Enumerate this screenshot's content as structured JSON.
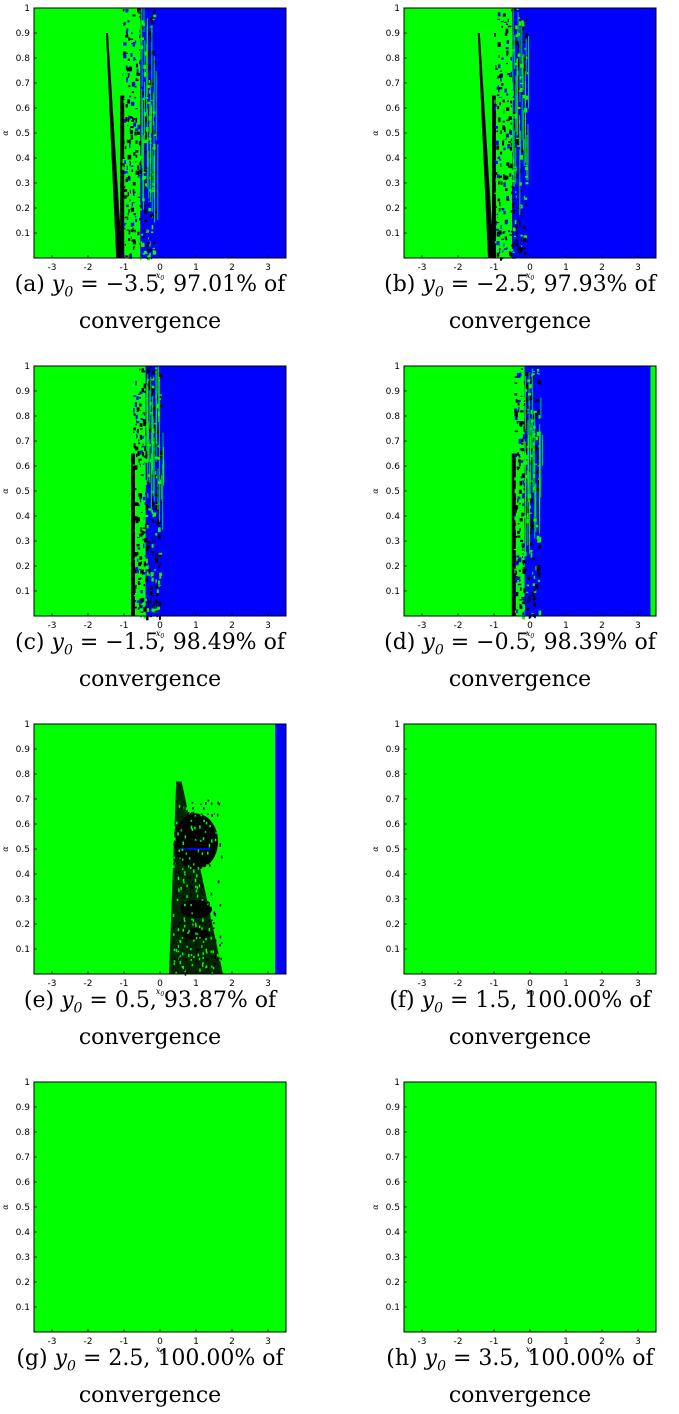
{
  "figure": {
    "x_axis_label": "x0",
    "y_axis_label": "α",
    "x_ticks": [
      -3,
      -2,
      -1,
      0,
      1,
      2,
      3
    ],
    "y_ticks": [
      0.1,
      0.2,
      0.3,
      0.4,
      0.5,
      0.6,
      0.7,
      0.8,
      0.9,
      1
    ],
    "x_range": [
      -3.5,
      3.5
    ],
    "y_range": [
      0,
      1
    ],
    "colors": {
      "converge_green": "#00ff00",
      "converge_blue": "#0000ff",
      "divergent_black": "#000000"
    },
    "panels": [
      {
        "letter": "(a)",
        "y0_label": "y0",
        "y0": "= −3.5,",
        "percent": "97.01% of",
        "word": "convergence",
        "green_until": -1.05,
        "blue_from": -0.55,
        "blue_to": 3.5,
        "right_green": false,
        "chaos_blob": false,
        "solid": false
      },
      {
        "letter": "(b)",
        "y0_label": "y0",
        "y0": "= −2.5,",
        "percent": "97.93% of",
        "word": "convergence",
        "green_until": -1.0,
        "blue_from": -0.5,
        "blue_to": 3.5,
        "right_green": false,
        "chaos_blob": false,
        "solid": false
      },
      {
        "letter": "(c)",
        "y0_label": "y0",
        "y0": "= −1.5,",
        "percent": "98.49% of",
        "word": "convergence",
        "green_until": -0.75,
        "blue_from": -0.4,
        "blue_to": 3.5,
        "right_green": false,
        "chaos_blob": false,
        "solid": false
      },
      {
        "letter": "(d)",
        "y0_label": "y0",
        "y0": "= −0.5,",
        "percent": "98.39% of",
        "word": "convergence",
        "green_until": -0.45,
        "blue_from": -0.15,
        "blue_to": 3.35,
        "right_green": true,
        "chaos_blob": false,
        "solid": false
      },
      {
        "letter": "(e)",
        "y0_label": "y0",
        "y0": "= 0.5,",
        "percent": "93.87% of",
        "word": "convergence",
        "green_until": 3.2,
        "blue_from": 3.2,
        "blue_to": 3.5,
        "right_green": false,
        "chaos_blob": true,
        "solid": false
      },
      {
        "letter": "(f)",
        "y0_label": "y0",
        "y0": "= 1.5,",
        "percent": "100.00% of",
        "word": "convergence",
        "solid": true
      },
      {
        "letter": "(g)",
        "y0_label": "y0",
        "y0": "= 2.5,",
        "percent": "100.00% of",
        "word": "convergence",
        "solid": true
      },
      {
        "letter": "(h)",
        "y0_label": "y0",
        "y0": "= 3.5,",
        "percent": "100.00% of",
        "word": "convergence",
        "solid": true
      }
    ]
  }
}
